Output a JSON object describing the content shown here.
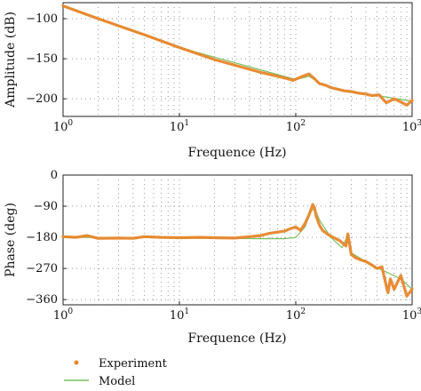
{
  "chart_data": [
    {
      "type": "line",
      "xlabel": "Frequence (Hz)",
      "ylabel": "Amplitude (dB)",
      "xscale": "log",
      "xlim": [
        1,
        1000
      ],
      "ylim": [
        -222,
        -80
      ],
      "xticks": [
        "10^0",
        "10^1",
        "10^2",
        "10^3"
      ],
      "yticks": [
        -100,
        -150,
        -200
      ],
      "grid": true,
      "series": [
        {
          "name": "Experiment",
          "color": "#E8862A",
          "x": [
            1,
            2,
            5,
            10,
            20,
            50,
            80,
            95,
            110,
            130,
            145,
            160,
            180,
            200,
            230,
            260,
            300,
            350,
            400,
            450,
            520,
            600,
            700,
            800,
            900,
            1000
          ],
          "y": [
            -84,
            -100,
            -120,
            -136,
            -151,
            -167,
            -174,
            -177,
            -173,
            -169,
            -175,
            -181,
            -183,
            -186,
            -188,
            -190,
            -191,
            -193,
            -194,
            -196,
            -195,
            -205,
            -200,
            -204,
            -208,
            -202
          ]
        },
        {
          "name": "Model",
          "color": "#7CBE63",
          "x": [
            1,
            10,
            100,
            130,
            145,
            160,
            200,
            300,
            500,
            1000
          ],
          "y": [
            -84,
            -136,
            -176,
            -172,
            -176,
            -182,
            -186,
            -191,
            -196,
            -203
          ]
        }
      ]
    },
    {
      "type": "line",
      "xlabel": "Frequence (Hz)",
      "ylabel": "Phase (deg)",
      "xscale": "log",
      "xlim": [
        1,
        1000
      ],
      "ylim": [
        -375,
        0
      ],
      "xticks": [
        "10^0",
        "10^1",
        "10^2",
        "10^3"
      ],
      "yticks": [
        0,
        -90,
        -180,
        -270,
        -360
      ],
      "grid": true,
      "series": [
        {
          "name": "Experiment",
          "color": "#E8862A",
          "x": [
            1,
            1.3,
            1.6,
            2,
            3,
            4,
            5,
            7,
            10,
            15,
            20,
            30,
            40,
            50,
            60,
            70,
            80,
            90,
            100,
            110,
            120,
            130,
            135,
            140,
            145,
            150,
            160,
            170,
            190,
            210,
            240,
            270,
            280,
            290,
            300,
            330,
            360,
            400,
            450,
            500,
            550,
            600,
            620,
            650,
            700,
            800,
            900,
            1000
          ],
          "y": [
            -178,
            -180,
            -175,
            -183,
            -182,
            -183,
            -178,
            -180,
            -181,
            -180,
            -181,
            -182,
            -178,
            -175,
            -168,
            -165,
            -162,
            -155,
            -150,
            -160,
            -140,
            -115,
            -100,
            -85,
            -95,
            -120,
            -145,
            -160,
            -172,
            -180,
            -190,
            -205,
            -170,
            -200,
            -230,
            -240,
            -245,
            -250,
            -260,
            -270,
            -265,
            -320,
            -340,
            -300,
            -330,
            -290,
            -350,
            -330
          ]
        },
        {
          "name": "Model",
          "color": "#7CBE63",
          "x": [
            1,
            10,
            50,
            80,
            100,
            120,
            135,
            145,
            160,
            200,
            250,
            280,
            300,
            400,
            500,
            600,
            800,
            1000
          ],
          "y": [
            -180,
            -181,
            -184,
            -184,
            -180,
            -150,
            -105,
            -95,
            -130,
            -180,
            -210,
            -175,
            -225,
            -250,
            -268,
            -280,
            -300,
            -330
          ]
        }
      ]
    }
  ],
  "legend": [
    {
      "label": "Experiment",
      "marker": "dot",
      "color": "#E8862A"
    },
    {
      "label": "Model",
      "marker": "line",
      "color": "#7CBE63"
    }
  ]
}
